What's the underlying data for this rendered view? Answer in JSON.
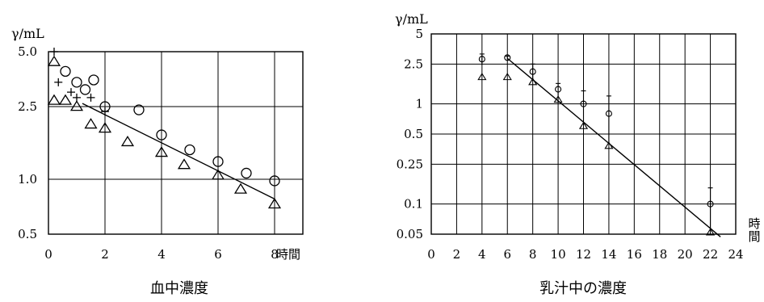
{
  "chart_data": [
    {
      "type": "scatter",
      "title": "血中濃度",
      "ylabel": "γ/mL",
      "xlabel": "時間",
      "yscale": "log",
      "xlim": [
        0,
        9
      ],
      "ylim": [
        0.5,
        5.0
      ],
      "x_ticks": [
        "0",
        "2",
        "4",
        "6",
        "8"
      ],
      "y_ticks": [
        {
          "value": 5.0,
          "label": "5.0"
        },
        {
          "value": 2.5,
          "label": "2.5"
        },
        {
          "value": 1.0,
          "label": "1.0"
        },
        {
          "value": 0.5,
          "label": "0.5"
        }
      ],
      "grid": true,
      "series": [
        {
          "marker": "circle",
          "points": [
            [
              0.6,
              3.9
            ],
            [
              1.0,
              3.4
            ],
            [
              1.3,
              3.1
            ],
            [
              1.6,
              3.5
            ],
            [
              2.0,
              2.5
            ],
            [
              3.2,
              2.4
            ],
            [
              4.0,
              1.75
            ],
            [
              5.0,
              1.45
            ],
            [
              6.0,
              1.25
            ],
            [
              7.0,
              1.08
            ],
            [
              8.0,
              0.98
            ]
          ]
        },
        {
          "marker": "triangle",
          "points": [
            [
              0.2,
              4.4
            ],
            [
              0.2,
              2.7
            ],
            [
              0.6,
              2.7
            ],
            [
              1.0,
              2.5
            ],
            [
              1.5,
              2.0
            ],
            [
              2.0,
              1.9
            ],
            [
              2.8,
              1.6
            ],
            [
              4.0,
              1.4
            ],
            [
              4.8,
              1.2
            ],
            [
              6.0,
              1.05
            ],
            [
              6.8,
              0.88
            ],
            [
              8.0,
              0.73
            ]
          ]
        },
        {
          "marker": "plus",
          "points": [
            [
              0.2,
              5.0
            ],
            [
              0.35,
              3.4
            ],
            [
              0.8,
              3.0
            ],
            [
              1.0,
              2.8
            ],
            [
              1.5,
              2.8
            ],
            [
              2.0,
              2.35
            ]
          ]
        }
      ],
      "fit_line": [
        [
          1.2,
          2.6
        ],
        [
          8.0,
          0.78
        ]
      ]
    },
    {
      "type": "scatter",
      "title": "乳汁中の濃度",
      "ylabel": "γ/mL",
      "xlabel": "時間",
      "yscale": "log",
      "xlim": [
        0,
        24
      ],
      "ylim": [
        0.05,
        5
      ],
      "x_ticks": [
        "0",
        "2",
        "4",
        "6",
        "8",
        "10",
        "12",
        "14",
        "16",
        "18",
        "20",
        "22",
        "24"
      ],
      "y_ticks": [
        {
          "value": 5,
          "label": "5"
        },
        {
          "value": 2.5,
          "label": "2.5"
        },
        {
          "value": 1,
          "label": "1"
        },
        {
          "value": 0.5,
          "label": "0.5"
        },
        {
          "value": 0.25,
          "label": "0.25"
        },
        {
          "value": 0.1,
          "label": "0.1"
        },
        {
          "value": 0.05,
          "label": "0.05"
        }
      ],
      "grid": true,
      "series": [
        {
          "marker": "circle",
          "error_bars": true,
          "points": [
            [
              4,
              2.8,
              0.35
            ],
            [
              6,
              2.9,
              0.1
            ],
            [
              8,
              2.1,
              0.4
            ],
            [
              10,
              1.4,
              0.2
            ],
            [
              12,
              1.0,
              0.35
            ],
            [
              14,
              0.8,
              0.4
            ],
            [
              22,
              0.1,
              0.045
            ]
          ]
        },
        {
          "marker": "triangle",
          "points": [
            [
              4,
              1.85
            ],
            [
              6,
              1.85
            ],
            [
              8,
              1.65
            ],
            [
              10,
              1.1
            ],
            [
              12,
              0.6
            ],
            [
              14,
              0.38
            ],
            [
              22,
              0.052
            ]
          ]
        }
      ],
      "fit_line": [
        [
          6,
          2.85
        ],
        [
          22.8,
          0.047
        ]
      ]
    }
  ]
}
